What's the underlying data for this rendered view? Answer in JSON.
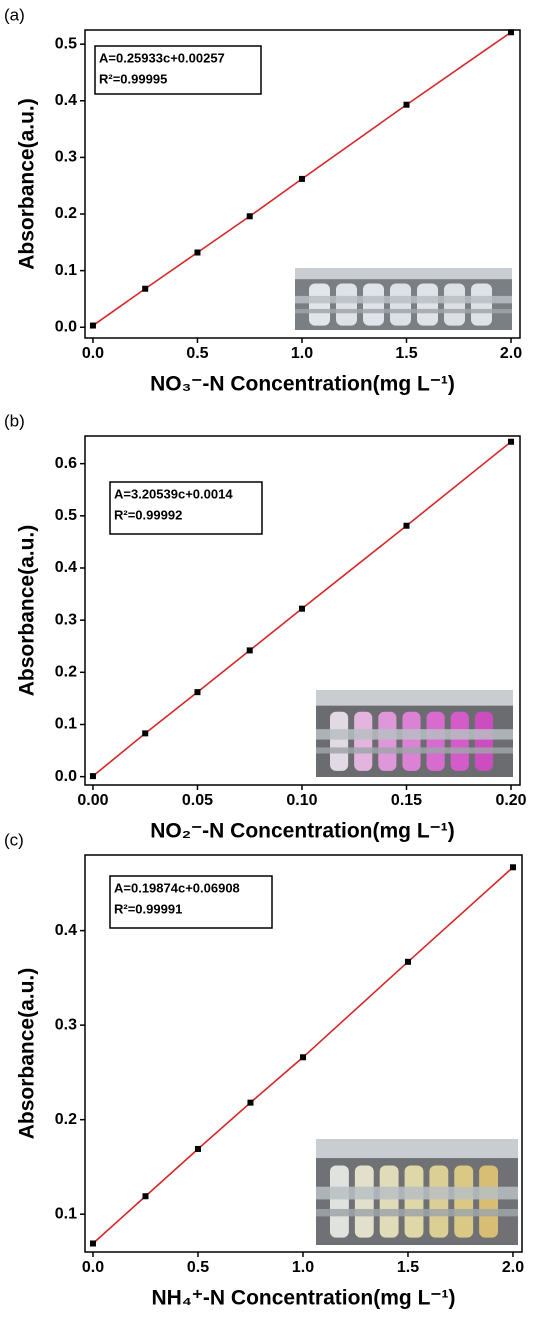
{
  "chart_data": [
    {
      "type": "line",
      "panel_label": "(a)",
      "x_label": "NO₃⁻-N Concentration(mg L⁻¹)",
      "y_label": "Absorbance(a.u.)",
      "annotations": [
        "A=0.25933c+0.00257",
        "R²=0.99995"
      ],
      "x": [
        0,
        0.25,
        0.5,
        0.75,
        1.0,
        1.5,
        2.0
      ],
      "series": [
        {
          "color": "#d62728",
          "marker_color": "#000000",
          "values": [
            0.003,
            0.068,
            0.132,
            0.196,
            0.262,
            0.393,
            0.521
          ]
        }
      ],
      "xlim": [
        -0.038,
        2.043
      ],
      "ylim": [
        -0.019,
        0.525
      ],
      "xticks": [
        {
          "value": 0,
          "label": "0.0"
        },
        0.5,
        {
          "value": 1,
          "label": "1.0"
        },
        1.5,
        {
          "value": 2,
          "label": "2.0"
        }
      ],
      "yticks": [
        {
          "value": 0,
          "label": "0.0"
        },
        0.1,
        0.2,
        0.3,
        0.4,
        0.5
      ]
    },
    {
      "type": "line",
      "panel_label": "(b)",
      "x_label": "NO₂⁻-N Concentration(mg L⁻¹)",
      "y_label": "Absorbance(a.u.)",
      "annotations": [
        "A=3.20539c+0.0014",
        "R²=0.99992"
      ],
      "x": [
        0,
        0.025,
        0.05,
        0.075,
        0.1,
        0.15,
        0.2
      ],
      "series": [
        {
          "color": "#d62728",
          "marker_color": "#000000",
          "values": [
            0.001,
            0.083,
            0.162,
            0.242,
            0.322,
            0.481,
            0.642
          ]
        }
      ],
      "xlim": [
        -0.0038,
        0.2043
      ],
      "ylim": [
        -0.016,
        0.653
      ],
      "xticks": [
        {
          "value": 0,
          "label": "0.00"
        },
        0.05,
        {
          "value": 0.1,
          "label": "0.10"
        },
        0.15,
        {
          "value": 0.2,
          "label": "0.20"
        }
      ],
      "yticks": [
        {
          "value": 0,
          "label": "0.0"
        },
        0.1,
        0.2,
        0.3,
        0.4,
        0.5,
        0.6
      ]
    },
    {
      "type": "line",
      "panel_label": "(c)",
      "x_label": "NH₄⁺-N Concentration(mg L⁻¹)",
      "y_label": "Absorbance(a.u.)",
      "annotations": [
        "A=0.19874c+0.06908",
        "R²=0.99991"
      ],
      "x": [
        0,
        0.25,
        0.5,
        0.75,
        1.0,
        1.5,
        2.0
      ],
      "series": [
        {
          "color": "#d62728",
          "marker_color": "#000000",
          "values": [
            0.069,
            0.119,
            0.169,
            0.218,
            0.266,
            0.367,
            0.467
          ]
        }
      ],
      "xlim": [
        -0.038,
        2.043
      ],
      "ylim": [
        0.06,
        0.48
      ],
      "xticks": [
        {
          "value": 0,
          "label": "0.0"
        },
        0.5,
        {
          "value": 1,
          "label": "1.0"
        },
        1.5,
        {
          "value": 2,
          "label": "2.0"
        }
      ],
      "yticks": [
        0.1,
        0.2,
        0.3,
        0.4
      ]
    }
  ]
}
